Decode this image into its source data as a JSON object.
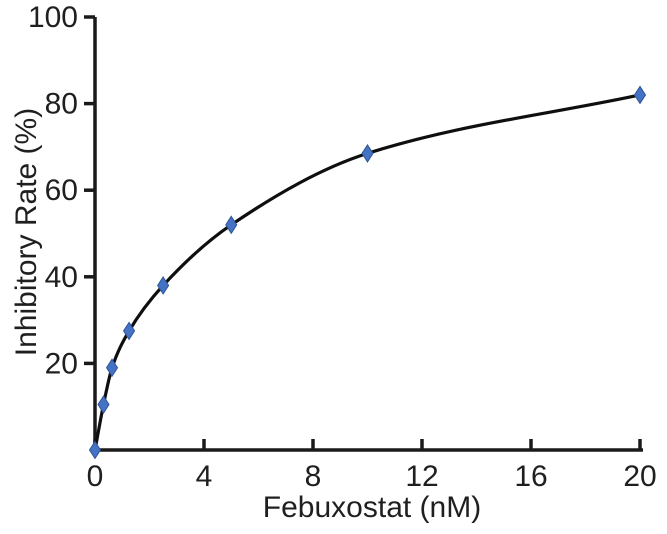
{
  "chart_data": {
    "type": "line",
    "title": "",
    "xlabel": "Febuxostat (nM)",
    "ylabel": "Inhibitory Rate (%)",
    "x": [
      0,
      0.3125,
      0.625,
      1.25,
      2.5,
      5,
      10,
      20
    ],
    "y": [
      0,
      10.5,
      19,
      27.5,
      38,
      52,
      68.5,
      82
    ],
    "xlim": [
      0,
      20
    ],
    "ylim": [
      0,
      100
    ],
    "x_ticks": [
      0,
      4,
      8,
      12,
      16,
      20
    ],
    "y_ticks": [
      20,
      40,
      60,
      80,
      100
    ],
    "grid": false,
    "legend": "none",
    "line_color": "#0f0f0f",
    "marker": "diamond",
    "marker_color": "#4472c4",
    "marker_stroke": "#2f5597",
    "axis_color": "#1a1a1a",
    "text_color": "#1f1f1f",
    "background_color": "#ffffff"
  }
}
